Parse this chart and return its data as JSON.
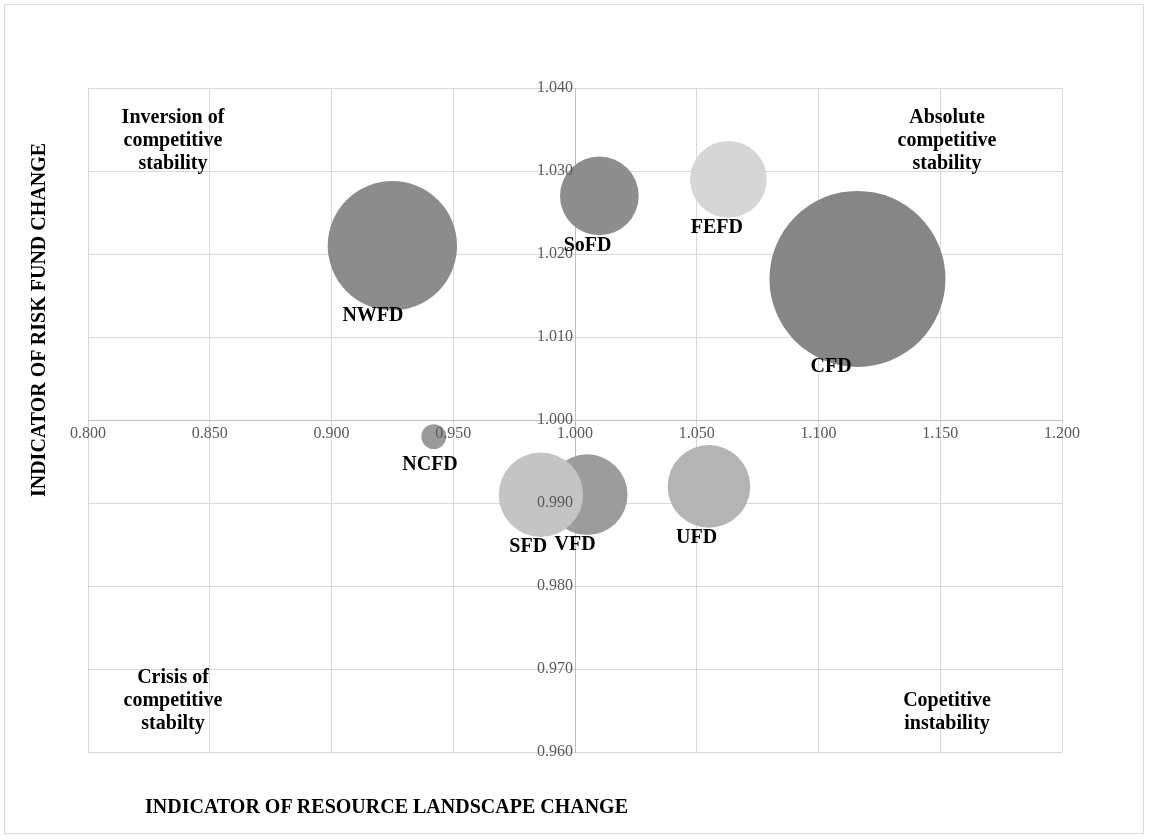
{
  "chart_data": {
    "type": "bubble",
    "xlabel": "INDICATOR OF RESOURCE LANDSCAPE CHANGE",
    "ylabel": "INDICATOR OF RISK FUND CHANGE",
    "xlim": [
      0.8,
      1.2
    ],
    "ylim": [
      0.96,
      1.04
    ],
    "xticks": [
      {
        "value": 0.8,
        "label": "0.800"
      },
      {
        "value": 0.85,
        "label": "0.850"
      },
      {
        "value": 0.9,
        "label": "0.900"
      },
      {
        "value": 0.95,
        "label": "0.950"
      },
      {
        "value": 1.0,
        "label": "1.000"
      },
      {
        "value": 1.05,
        "label": "1.050"
      },
      {
        "value": 1.1,
        "label": "1.100"
      },
      {
        "value": 1.15,
        "label": "1.150"
      },
      {
        "value": 1.2,
        "label": "1.200"
      }
    ],
    "yticks": [
      {
        "value": 0.96,
        "label": "0.960"
      },
      {
        "value": 0.97,
        "label": "0.970"
      },
      {
        "value": 0.98,
        "label": "0.980"
      },
      {
        "value": 0.99,
        "label": "0.990"
      },
      {
        "value": 1.0,
        "label": "1.000"
      },
      {
        "value": 1.01,
        "label": "1.010"
      },
      {
        "value": 1.02,
        "label": "1.020"
      },
      {
        "value": 1.03,
        "label": "1.030"
      },
      {
        "value": 1.04,
        "label": "1.040"
      }
    ],
    "grid": true,
    "legend": false,
    "annotations": [
      "Inversion of competitive stability",
      "Absolute competitive stability",
      "Crisis of competitive stabilty",
      "Copetitive instability"
    ],
    "series": [
      {
        "name": "NWFD",
        "color": "#8c8c8c",
        "x": [
          0.925
        ],
        "values": [
          1.021
        ],
        "sizes": [
          0.54
        ]
      },
      {
        "name": "SoFD",
        "color": "#8e8e8e",
        "x": [
          1.01
        ],
        "values": [
          1.027
        ],
        "sizes": [
          0.2
        ]
      },
      {
        "name": "FEFD",
        "color": "#d6d6d6",
        "x": [
          1.063
        ],
        "values": [
          1.029
        ],
        "sizes": [
          0.19
        ]
      },
      {
        "name": "CFD",
        "color": "#868686",
        "x": [
          1.116
        ],
        "values": [
          1.017
        ],
        "sizes": [
          1
        ]
      },
      {
        "name": "NCFD",
        "color": "#9a9a9a",
        "x": [
          0.942
        ],
        "values": [
          0.998
        ],
        "sizes": [
          0.02
        ]
      },
      {
        "name": "SFD",
        "color": "#c4c4c4",
        "x": [
          0.986
        ],
        "values": [
          0.991
        ],
        "sizes": [
          0.23
        ]
      },
      {
        "name": "VFD",
        "color": "#9c9c9c",
        "x": [
          1.005
        ],
        "values": [
          0.991
        ],
        "sizes": [
          0.21
        ]
      },
      {
        "name": "UFD",
        "color": "#b4b4b4",
        "x": [
          1.055
        ],
        "values": [
          0.992
        ],
        "sizes": [
          0.22
        ]
      }
    ]
  }
}
